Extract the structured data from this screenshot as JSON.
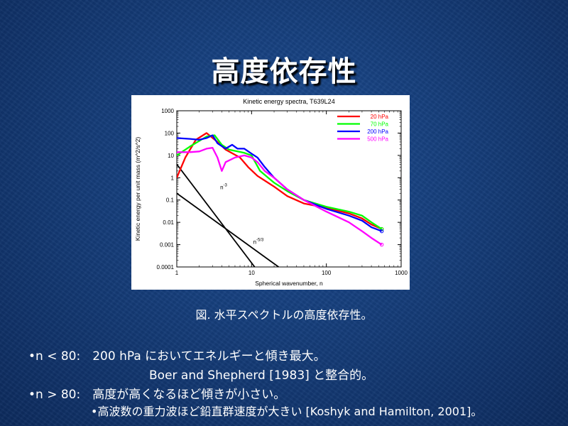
{
  "slide": {
    "title": "高度依存性",
    "caption": "図. 水平スペクトルの高度依存性。",
    "bullets": {
      "b1": "•n < 80:　200 hPa においてエネルギーと傾き最大。",
      "b1_sub": "Boer and Shepherd [1983] と整合的。",
      "b2": "•n > 80:　高度が高くなるほど傾きが小さい。",
      "b3": "•高波数の重力波ほど鉛直群速度が大きい [Koshyk and Hamilton, 2001]。"
    }
  },
  "chart_data": {
    "type": "line",
    "title": "Kinetic energy spectra, T639L24",
    "xlabel": "Spherical wavenumber, n",
    "ylabel": "Kinetic energy per unit mass (m^2/s^2)",
    "x_scale": "log",
    "y_scale": "log",
    "xlim": [
      1,
      1000
    ],
    "ylim": [
      0.0001,
      1000
    ],
    "x_ticks": [
      "1",
      "10",
      "100",
      "1000"
    ],
    "y_ticks": [
      "0.0001",
      "0.001",
      "0.01",
      "0.1",
      "1",
      "10",
      "100",
      "1000"
    ],
    "legend_position": "top-right",
    "series": [
      {
        "name": "20 hPa",
        "color": "#ff0000",
        "points": [
          [
            1,
            1
          ],
          [
            1.3,
            8
          ],
          [
            1.8,
            50
          ],
          [
            2.5,
            100
          ],
          [
            3.5,
            40
          ],
          [
            4.5,
            18
          ],
          [
            7,
            8
          ],
          [
            9,
            3
          ],
          [
            12,
            1.2
          ],
          [
            20,
            0.4
          ],
          [
            30,
            0.15
          ],
          [
            50,
            0.07
          ],
          [
            100,
            0.045
          ],
          [
            200,
            0.025
          ],
          [
            300,
            0.015
          ],
          [
            400,
            0.008
          ],
          [
            550,
            0.005
          ]
        ]
      },
      {
        "name": "70 hPa",
        "color": "#00ff00",
        "points": [
          [
            1,
            10
          ],
          [
            1.5,
            25
          ],
          [
            2.5,
            70
          ],
          [
            3.2,
            80
          ],
          [
            4,
            30
          ],
          [
            5,
            18
          ],
          [
            8,
            13
          ],
          [
            10,
            10
          ],
          [
            13,
            2
          ],
          [
            20,
            0.6
          ],
          [
            30,
            0.25
          ],
          [
            50,
            0.1
          ],
          [
            100,
            0.05
          ],
          [
            200,
            0.03
          ],
          [
            300,
            0.02
          ],
          [
            400,
            0.01
          ],
          [
            550,
            0.005
          ]
        ]
      },
      {
        "name": "200 hPa",
        "color": "#0000ff",
        "points": [
          [
            1,
            60
          ],
          [
            1.5,
            55
          ],
          [
            2,
            50
          ],
          [
            2.5,
            60
          ],
          [
            3,
            80
          ],
          [
            3.5,
            35
          ],
          [
            4.5,
            20
          ],
          [
            5.5,
            30
          ],
          [
            6.5,
            20
          ],
          [
            8,
            20
          ],
          [
            10,
            12
          ],
          [
            12,
            8
          ],
          [
            15,
            3
          ],
          [
            20,
            1
          ],
          [
            30,
            0.3
          ],
          [
            50,
            0.1
          ],
          [
            100,
            0.04
          ],
          [
            200,
            0.02
          ],
          [
            300,
            0.012
          ],
          [
            400,
            0.006
          ],
          [
            550,
            0.004
          ]
        ]
      },
      {
        "name": "500 hPa",
        "color": "#ff00ff",
        "points": [
          [
            1,
            14
          ],
          [
            1.5,
            14
          ],
          [
            2,
            15
          ],
          [
            2.5,
            20
          ],
          [
            3,
            22
          ],
          [
            3.5,
            8
          ],
          [
            4,
            2
          ],
          [
            4.5,
            5
          ],
          [
            6,
            8
          ],
          [
            8,
            10
          ],
          [
            10,
            8
          ],
          [
            12,
            5
          ],
          [
            15,
            2
          ],
          [
            20,
            1
          ],
          [
            30,
            0.3
          ],
          [
            50,
            0.1
          ],
          [
            100,
            0.03
          ],
          [
            200,
            0.01
          ],
          [
            300,
            0.004
          ],
          [
            400,
            0.002
          ],
          [
            550,
            0.001
          ]
        ]
      }
    ],
    "reference_lines": [
      {
        "label": "n-3",
        "color": "#000000",
        "points": [
          [
            1,
            4
          ],
          [
            11,
            0.0001
          ]
        ]
      },
      {
        "label": "n-5/3",
        "color": "#000000",
        "points": [
          [
            1,
            0.2
          ],
          [
            23,
            0.0001
          ]
        ]
      }
    ]
  }
}
